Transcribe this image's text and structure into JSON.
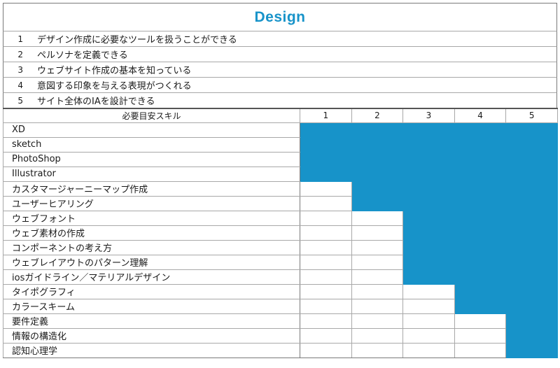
{
  "title": "Design",
  "goals": [
    {
      "num": "1",
      "text": "デザイン作成に必要なツールを扱うことができる"
    },
    {
      "num": "2",
      "text": "ペルソナを定義できる"
    },
    {
      "num": "3",
      "text": "ウェブサイト作成の基本を知っている"
    },
    {
      "num": "4",
      "text": "意図する印象を与える表現がつくれる"
    },
    {
      "num": "5",
      "text": "サイト全体のIAを設計できる"
    }
  ],
  "table": {
    "skill_header": "必要目安スキル",
    "levels": [
      "1",
      "2",
      "3",
      "4",
      "5"
    ],
    "rows": [
      {
        "skill": "XD",
        "start_level": 1
      },
      {
        "skill": "sketch",
        "start_level": 1
      },
      {
        "skill": "PhotoShop",
        "start_level": 1
      },
      {
        "skill": "Illustrator",
        "start_level": 1
      },
      {
        "skill": "カスタマージャーニーマップ作成",
        "start_level": 2
      },
      {
        "skill": "ユーザーヒアリング",
        "start_level": 2
      },
      {
        "skill": "ウェブフォント",
        "start_level": 3
      },
      {
        "skill": "ウェブ素材の作成",
        "start_level": 3
      },
      {
        "skill": "コンポーネントの考え方",
        "start_level": 3
      },
      {
        "skill": "ウェブレイアウトのパターン理解",
        "start_level": 3
      },
      {
        "skill": "iosガイドライン／マテリアルデザイン",
        "start_level": 3
      },
      {
        "skill": "タイポグラフィ",
        "start_level": 4
      },
      {
        "skill": "カラースキーム",
        "start_level": 4
      },
      {
        "skill": "要件定義",
        "start_level": 5
      },
      {
        "skill": "情報の構造化",
        "start_level": 5
      },
      {
        "skill": "認知心理学",
        "start_level": 5
      }
    ]
  },
  "colors": {
    "accent": "#1793c9",
    "title": "#1793c9",
    "grid_line": "#a8a8a8"
  }
}
